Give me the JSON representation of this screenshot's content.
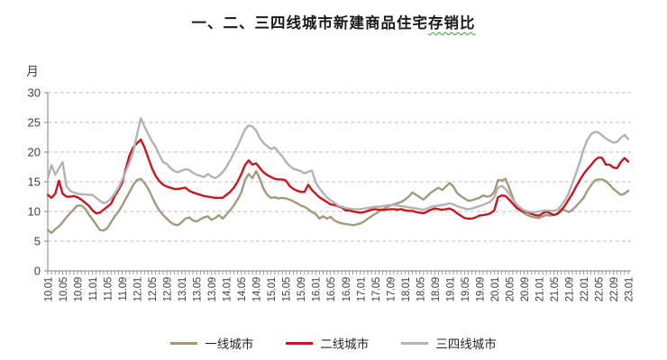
{
  "title": {
    "main": "一、二、三四线城市新建商品住宅",
    "tail": "存销比"
  },
  "colors": {
    "grid": "#bfbfbf",
    "axis": "#808080",
    "tick_text": "#3f3f3f",
    "title_underline": "#33a04c"
  },
  "chart_data": {
    "type": "line",
    "title": "一、二、三四线城市新建商品住宅存销比",
    "ylabel": "月",
    "ylim": [
      0,
      30
    ],
    "y_ticks": [
      0,
      5,
      10,
      15,
      20,
      25,
      30
    ],
    "grid": "horizontal-dashed",
    "legend_position": "bottom",
    "x_frequency": "monthly",
    "x_range": "10.01 to 23.01",
    "x_tick_step": 4,
    "x_tick_labels": [
      "10.01",
      "10.05",
      "10.09",
      "11.01",
      "11.05",
      "11.09",
      "12.01",
      "12.05",
      "12.09",
      "13.01",
      "13.05",
      "13.09",
      "14.01",
      "14.05",
      "14.09",
      "15.01",
      "15.05",
      "15.09",
      "16.01",
      "16.05",
      "16.09",
      "17.01",
      "17.05",
      "17.09",
      "18.01",
      "18.05",
      "18.09",
      "19.01",
      "19.05",
      "19.09",
      "20.01",
      "20.05",
      "20.09",
      "21.01",
      "21.05",
      "21.09",
      "22.01",
      "22.05",
      "22.09",
      "23.01"
    ],
    "series": [
      {
        "name": "一线城市",
        "key": "tier1",
        "color": "#a39a7c",
        "values": [
          6.9,
          6.4,
          7.0,
          7.5,
          8.2,
          9.0,
          9.7,
          10.4,
          11.0,
          11.0,
          10.5,
          9.5,
          8.7,
          7.8,
          6.9,
          6.8,
          7.2,
          8.2,
          9.2,
          10.0,
          11.0,
          12.2,
          13.3,
          14.5,
          15.3,
          15.5,
          14.8,
          13.8,
          12.5,
          11.2,
          10.2,
          9.4,
          8.8,
          8.2,
          7.8,
          7.7,
          8.2,
          8.8,
          9.0,
          8.5,
          8.3,
          8.7,
          9.0,
          9.2,
          8.6,
          8.9,
          9.4,
          8.8,
          9.5,
          10.2,
          11.0,
          12.0,
          13.2,
          15.3,
          16.3,
          15.6,
          16.8,
          15.5,
          13.8,
          12.8,
          12.3,
          12.4,
          12.2,
          12.3,
          12.2,
          12.0,
          11.7,
          11.4,
          11.0,
          10.8,
          10.4,
          9.9,
          9.6,
          8.8,
          9.2,
          8.8,
          9.1,
          8.5,
          8.2,
          8.0,
          7.9,
          7.8,
          7.7,
          7.8,
          8.0,
          8.3,
          8.8,
          9.2,
          9.6,
          10.0,
          10.3,
          10.7,
          11.0,
          11.2,
          11.4,
          11.6,
          12.0,
          12.5,
          13.2,
          12.8,
          12.4,
          12.0,
          12.6,
          13.2,
          13.6,
          14.0,
          13.6,
          14.2,
          14.8,
          14.2,
          13.1,
          12.6,
          12.2,
          11.8,
          11.9,
          12.1,
          12.3,
          12.7,
          12.5,
          12.6,
          13.3,
          15.3,
          15.2,
          15.5,
          14.0,
          12.3,
          10.8,
          10.2,
          9.7,
          9.4,
          9.1,
          9.0,
          8.9,
          9.2,
          9.4,
          9.3,
          9.4,
          9.7,
          10.4,
          10.2,
          9.9,
          10.3,
          10.9,
          11.6,
          12.3,
          13.5,
          14.4,
          15.2,
          15.4,
          15.4,
          15.1,
          14.5,
          13.8,
          13.3,
          12.8,
          13.0,
          13.5
        ]
      },
      {
        "name": "二线城市",
        "key": "tier2",
        "color": "#c9161e",
        "values": [
          12.8,
          12.3,
          13.0,
          15.2,
          13.0,
          12.5,
          12.5,
          12.6,
          12.4,
          12.0,
          11.5,
          11.0,
          10.2,
          9.7,
          9.8,
          10.3,
          10.8,
          11.3,
          12.6,
          13.6,
          14.8,
          17.3,
          19.5,
          20.8,
          21.5,
          22.1,
          20.8,
          19.0,
          17.3,
          16.0,
          15.1,
          14.5,
          14.2,
          14.0,
          13.8,
          13.8,
          13.9,
          14.0,
          13.5,
          13.2,
          13.0,
          12.8,
          12.6,
          12.5,
          12.4,
          12.3,
          12.3,
          12.3,
          12.8,
          13.3,
          14.0,
          15.0,
          16.3,
          17.8,
          18.6,
          17.9,
          18.1,
          17.3,
          16.6,
          16.1,
          15.8,
          15.5,
          15.4,
          15.4,
          15.2,
          14.3,
          13.8,
          13.5,
          13.3,
          13.3,
          14.5,
          13.6,
          13.0,
          12.4,
          12.0,
          11.6,
          11.2,
          11.1,
          10.9,
          10.7,
          10.2,
          10.2,
          10.0,
          9.9,
          9.8,
          9.9,
          10.1,
          10.3,
          10.4,
          10.3,
          10.3,
          10.3,
          10.4,
          10.4,
          10.3,
          10.4,
          10.2,
          10.1,
          10.1,
          9.9,
          9.8,
          9.7,
          10.0,
          10.3,
          10.5,
          10.4,
          10.3,
          10.4,
          10.5,
          10.2,
          9.7,
          9.3,
          8.9,
          8.8,
          8.8,
          9.0,
          9.3,
          9.4,
          9.5,
          9.7,
          10.2,
          12.4,
          12.7,
          12.6,
          12.0,
          11.3,
          10.6,
          10.2,
          10.0,
          9.9,
          9.6,
          9.4,
          9.3,
          9.7,
          10.0,
          9.7,
          9.4,
          9.6,
          10.2,
          11.0,
          12.0,
          13.0,
          14.2,
          15.3,
          16.3,
          17.1,
          17.8,
          18.6,
          19.1,
          19.0,
          17.9,
          17.9,
          17.4,
          17.3,
          18.3,
          19.0,
          18.4
        ]
      },
      {
        "name": "三四线城市",
        "key": "tier34",
        "color": "#b3b2b4",
        "values": [
          15.5,
          17.8,
          16.2,
          17.3,
          18.3,
          14.3,
          13.5,
          13.2,
          13.0,
          12.9,
          12.9,
          12.8,
          12.8,
          12.3,
          11.8,
          11.4,
          11.6,
          12.2,
          13.0,
          14.0,
          15.3,
          16.8,
          18.3,
          20.1,
          23.0,
          25.7,
          24.3,
          23.0,
          21.8,
          20.9,
          19.5,
          18.3,
          18.0,
          17.3,
          16.8,
          16.6,
          16.9,
          17.1,
          17.0,
          16.5,
          16.2,
          16.0,
          15.8,
          16.3,
          15.9,
          15.6,
          16.0,
          16.6,
          17.5,
          18.6,
          19.8,
          21.0,
          22.4,
          23.8,
          24.5,
          24.3,
          23.6,
          22.4,
          21.5,
          21.0,
          20.5,
          20.8,
          20.0,
          19.3,
          18.4,
          17.7,
          17.2,
          17.0,
          16.8,
          16.4,
          16.7,
          16.9,
          14.9,
          13.9,
          13.1,
          12.4,
          11.9,
          11.5,
          11.0,
          10.8,
          10.6,
          10.5,
          10.4,
          10.4,
          10.4,
          10.5,
          10.6,
          10.7,
          10.8,
          10.8,
          10.9,
          11.0,
          11.1,
          11.1,
          11.0,
          10.9,
          10.8,
          10.7,
          10.6,
          10.5,
          10.4,
          10.3,
          10.5,
          10.8,
          10.9,
          11.0,
          11.1,
          11.2,
          11.4,
          11.2,
          10.9,
          10.7,
          10.5,
          10.4,
          10.5,
          10.7,
          10.9,
          11.1,
          11.4,
          11.7,
          12.4,
          14.0,
          14.3,
          13.8,
          13.0,
          12.0,
          11.2,
          10.6,
          10.2,
          10.0,
          9.9,
          9.9,
          10.0,
          10.1,
          10.2,
          10.1,
          10.1,
          10.3,
          11.0,
          11.9,
          13.0,
          14.8,
          16.5,
          18.3,
          20.5,
          22.0,
          23.0,
          23.4,
          23.3,
          22.8,
          22.3,
          21.9,
          21.6,
          21.7,
          22.4,
          22.9,
          22.2
        ]
      }
    ]
  }
}
